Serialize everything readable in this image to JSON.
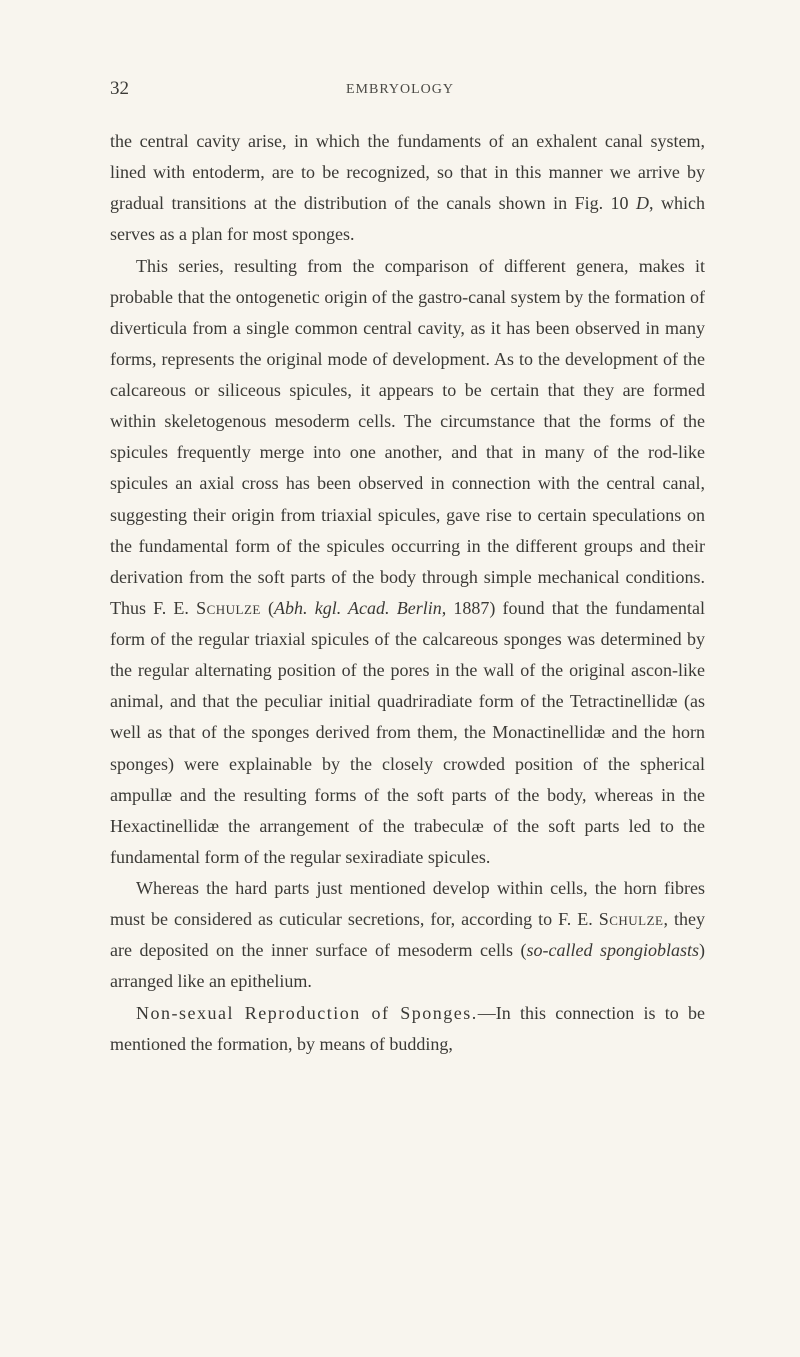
{
  "page": {
    "number": "32",
    "running_header": "EMBRYOLOGY"
  },
  "paragraphs": {
    "p1": {
      "text": "the central cavity arise, in which the fundaments of an exhalent canal system, lined with entoderm, are to be recognized, so that in this manner we arrive by gradual transitions at the distribution of the canals shown in Fig. 10 ",
      "italic1": "D",
      "text2": ", which serves as a plan for most sponges."
    },
    "p2": {
      "text1": "This series, resulting from the comparison of different genera, makes it probable that the ontogenetic origin of the gastro-canal system by the formation of diverticula from a single common central cavity, as it has been observed in many forms, represents the original mode of development. As to the development of the calcareous or siliceous spicules, it appears to be certain that they are formed within skeleto­genous mesoderm cells. The circumstance that the forms of the spicules frequently merge into one another, and that in many of the rod-like spicules an axial cross has been ob­served in connection with the central canal, suggesting their origin from triaxial spicules, gave rise to certain specula­tions on the fundamental form of the spicules occurring in the different groups and their derivation from the soft parts of the body through simple mechanical conditions. Thus F. E. ",
      "smallcaps1": "Schulze",
      "text2": " (",
      "italic1": "Abh. kgl. Acad. Berlin",
      "text3": ", 1887) found that the fundamental form of the regular triaxial spicules of the cal­careous sponges was determined by the regular alternating position of the pores in the wall of the original ascon-like animal, and that the peculiar initial quadriradiate form of the Tetractinellidæ (as well as that of the sponges derived from them, the Monactinellidæ and the horn sponges) were explain­able by the closely crowded position of the spherical ampullæ and the resulting forms of the soft parts of the body, whereas in the Hexactinellidæ the arrangement of the trabeculæ of the soft parts led to the fundamental form of the regular sexi­radiate spicules."
    },
    "p3": {
      "text1": "Whereas the hard parts just mentioned develop within cells, the horn fibres must be considered as cuticular secre­tions, for, according to F. E. ",
      "smallcaps1": "Schulze",
      "text2": ", they are deposited on the inner surface of mesoderm cells (",
      "italic1": "so-called spongioblasts",
      "text3": ") arranged like an epithelium."
    },
    "p4": {
      "heading": "Non-sexual Reproduction of Sponges.",
      "text1": "—In this con­nection is to be mentioned the formation, by means of budding,"
    }
  }
}
